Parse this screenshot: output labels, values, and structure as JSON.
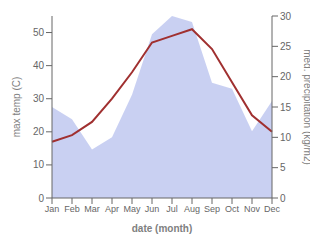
{
  "chart_data": {
    "type": "line",
    "xlabel": "date (month)",
    "ylabel": "max temp (C)",
    "y2label": "med. precipitation (kg/m2)",
    "categories": [
      "Jan",
      "Feb",
      "Mar",
      "Apr",
      "May",
      "Jun",
      "Jul",
      "Aug",
      "Sep",
      "Oct",
      "Nov",
      "Dec"
    ],
    "series": [
      {
        "type": "area",
        "color": "#c0c8f0",
        "axis": "y2",
        "values": [
          15,
          13,
          8,
          10,
          17,
          27,
          30,
          29,
          19,
          18,
          11,
          16
        ]
      },
      {
        "type": "line",
        "color": "#a03030",
        "values": [
          17,
          19,
          23,
          30,
          38,
          47,
          49,
          51,
          45,
          35,
          25,
          20
        ]
      }
    ],
    "ylim": [
      0,
      55
    ],
    "yticks": [
      0,
      10,
      20,
      30,
      40,
      50
    ],
    "y2lim": [
      0,
      30
    ],
    "y2ticks": [
      0,
      5,
      10,
      15,
      20,
      25,
      30
    ],
    "grid": false
  }
}
